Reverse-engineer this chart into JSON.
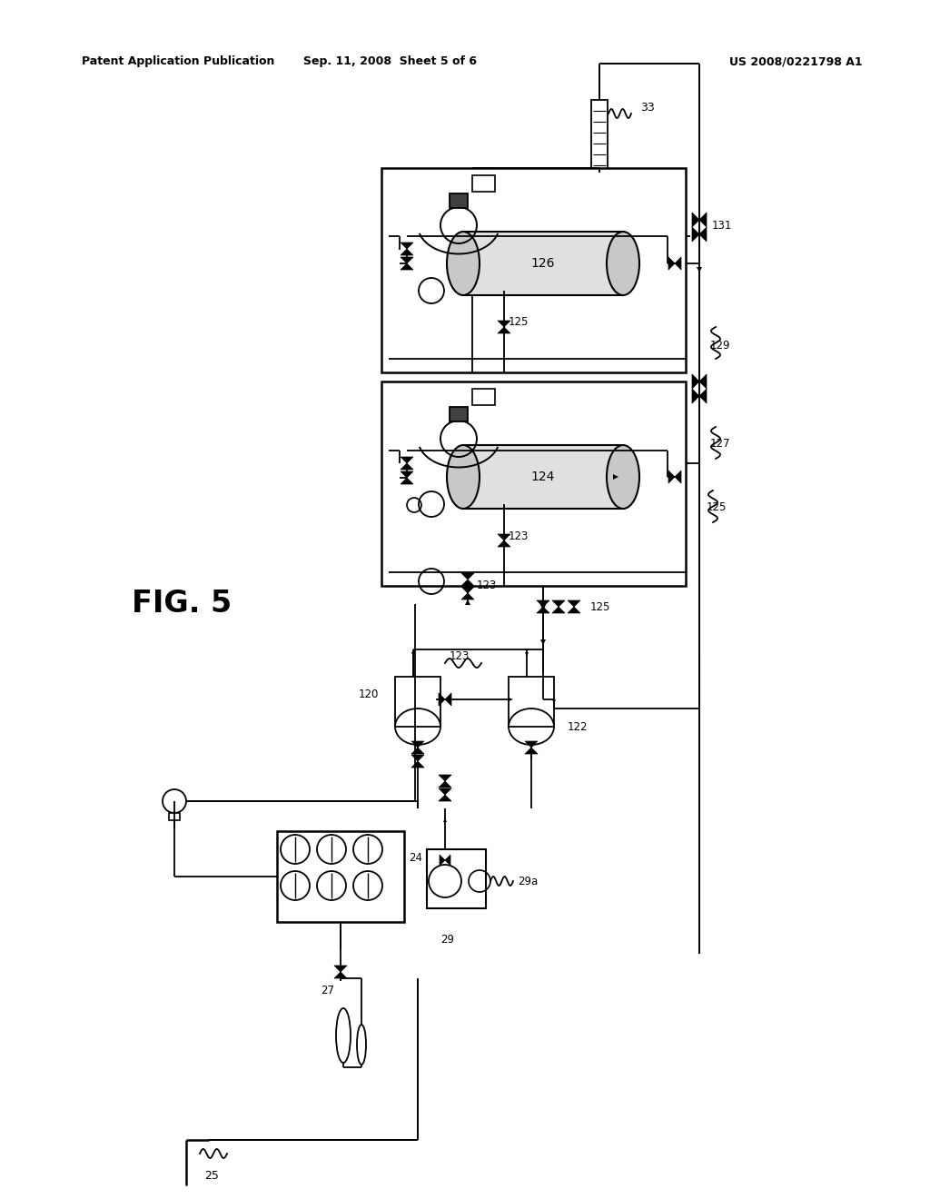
{
  "title": "FIG. 5",
  "header_left": "Patent Application Publication",
  "header_center": "Sep. 11, 2008  Sheet 5 of 6",
  "header_right": "US 2008/0221798 A1",
  "bg_color": "#ffffff",
  "line_color": "#000000",
  "text_color": "#000000",
  "header_font_size": 9,
  "fig_label_font_size": 24,
  "label_font_size": 8.5
}
